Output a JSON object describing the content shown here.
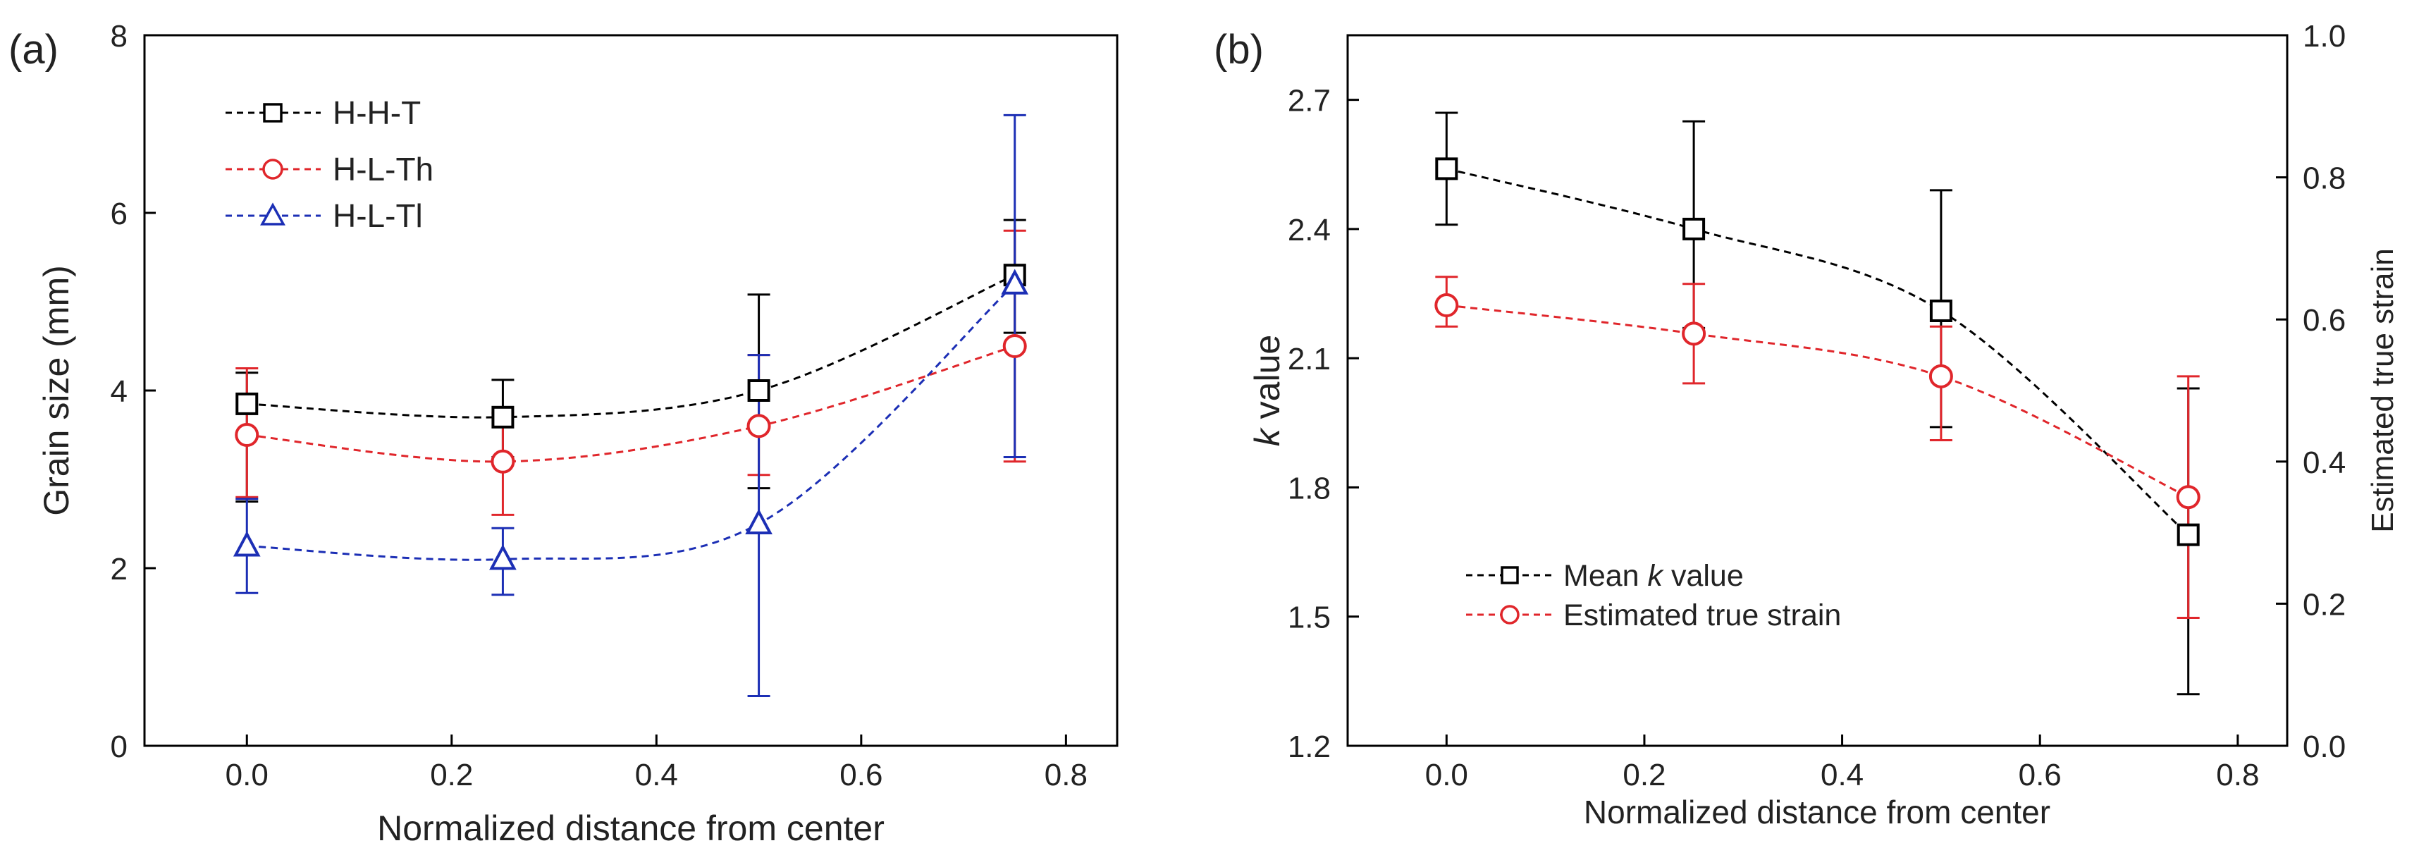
{
  "chart_data": [
    {
      "panel_label": "(a)",
      "type": "line",
      "xlabel": "Normalized distance from center",
      "ylabel": "Grain size (mm)",
      "xlim": [
        -0.1,
        0.85
      ],
      "ylim": [
        0,
        8
      ],
      "xticks": [
        0.0,
        0.2,
        0.4,
        0.6,
        0.8
      ],
      "xtick_labels": [
        "0.0",
        "0.2",
        "0.4",
        "0.6",
        "0.8"
      ],
      "yticks": [
        0,
        2,
        4,
        6,
        8
      ],
      "ytick_labels": [
        "0",
        "2",
        "4",
        "6",
        "8"
      ],
      "legend_position": "top-left",
      "series": [
        {
          "name": "H-H-T",
          "color": "#000000",
          "marker": "square",
          "x": [
            0.0,
            0.25,
            0.5,
            0.75
          ],
          "y": [
            3.85,
            3.7,
            4.0,
            5.3
          ],
          "yerr_low": [
            2.75,
            3.25,
            2.9,
            4.65
          ],
          "yerr_high": [
            4.2,
            4.12,
            5.08,
            5.92
          ]
        },
        {
          "name": "H-L-Th",
          "color": "#e0262b",
          "marker": "circle",
          "x": [
            0.0,
            0.25,
            0.5,
            0.75
          ],
          "y": [
            3.5,
            3.2,
            3.6,
            4.5
          ],
          "yerr_low": [
            2.8,
            2.6,
            3.05,
            3.2
          ],
          "yerr_high": [
            4.25,
            3.75,
            4.4,
            5.8
          ]
        },
        {
          "name": "H-L-Tl",
          "color": "#1c2fb5",
          "marker": "triangle",
          "x": [
            0.0,
            0.25,
            0.5,
            0.75
          ],
          "y": [
            2.25,
            2.1,
            2.5,
            5.2
          ],
          "yerr_low": [
            1.72,
            1.7,
            0.56,
            3.25
          ],
          "yerr_high": [
            2.78,
            2.45,
            4.4,
            7.1
          ]
        }
      ]
    },
    {
      "panel_label": "(b)",
      "type": "line",
      "xlabel": "Normalized distance from center",
      "ylabel_italic": "k",
      "ylabel_rest": " value",
      "ylabel_right": "Estimated true strain",
      "xlim": [
        -0.1,
        0.85
      ],
      "ylim": [
        1.2,
        2.85
      ],
      "ylim_right": [
        0.0,
        1.0
      ],
      "xticks": [
        0.0,
        0.2,
        0.4,
        0.6,
        0.8
      ],
      "xtick_labels": [
        "0.0",
        "0.2",
        "0.4",
        "0.6",
        "0.8"
      ],
      "yticks": [
        1.2,
        1.5,
        1.8,
        2.1,
        2.4,
        2.7
      ],
      "ytick_labels": [
        "1.2",
        "1.5",
        "1.8",
        "2.1",
        "2.4",
        "2.7"
      ],
      "yticks_right": [
        0.0,
        0.2,
        0.4,
        0.6,
        0.8,
        1.0
      ],
      "ytick_labels_right": [
        "0.0",
        "0.2",
        "0.4",
        "0.6",
        "0.8",
        "1.0"
      ],
      "legend_position": "bottom-left",
      "series": [
        {
          "name_before": "Mean ",
          "name_italic": "k",
          "name_after": " value",
          "axis": "left",
          "color": "#000000",
          "marker": "square",
          "x": [
            0.0,
            0.25,
            0.5,
            0.75
          ],
          "y": [
            2.54,
            2.4,
            2.21,
            1.69
          ],
          "yerr_low": [
            2.41,
            2.17,
            1.94,
            1.32
          ],
          "yerr_high": [
            2.67,
            2.65,
            2.49,
            2.03
          ]
        },
        {
          "name": "Estimated true strain",
          "axis": "right",
          "color": "#e0262b",
          "marker": "circle",
          "x": [
            0.0,
            0.25,
            0.5,
            0.75
          ],
          "y": [
            0.62,
            0.58,
            0.52,
            0.35
          ],
          "yerr_low": [
            0.59,
            0.51,
            0.43,
            0.18
          ],
          "yerr_high": [
            0.66,
            0.65,
            0.59,
            0.52
          ]
        }
      ]
    }
  ]
}
